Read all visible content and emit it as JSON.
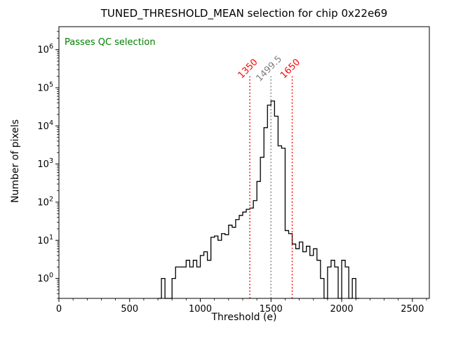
{
  "chart_data": {
    "type": "histogram-step",
    "title": "TUNED_THRESHOLD_MEAN selection for chip 0x22e69",
    "xlabel": "Threshold (e)",
    "ylabel": "Number of pixels",
    "yscale": "log",
    "grid": false,
    "xlim": [
      0,
      2620
    ],
    "ylim": [
      0.3,
      4000000
    ],
    "xticks": [
      0,
      500,
      1000,
      1500,
      2000,
      2500
    ],
    "x_minor_step": 100,
    "ytick_exponents": [
      0,
      1,
      2,
      3,
      4,
      5,
      6
    ],
    "line_color": "#000000",
    "bins": {
      "start": 700,
      "width": 25
    },
    "counts": [
      0,
      1,
      0,
      0,
      1,
      2,
      2,
      2,
      3,
      2,
      3,
      2,
      4,
      5,
      3,
      12,
      13,
      10,
      15,
      14,
      25,
      22,
      35,
      45,
      55,
      65,
      70,
      110,
      350,
      1500,
      9000,
      35000,
      45000,
      18000,
      3000,
      2600,
      18,
      15,
      8,
      6,
      9,
      5,
      7,
      4,
      6,
      3,
      1,
      0,
      2,
      3,
      2,
      0,
      3,
      2,
      0,
      1,
      0
    ],
    "vline_top": 200000,
    "vlines": [
      {
        "x": 1350,
        "label": "1350",
        "color": "#ff0000"
      },
      {
        "x": 1499.5,
        "label": "1499.5",
        "color": "#808080"
      },
      {
        "x": 1650,
        "label": "1650",
        "color": "#ff0000"
      }
    ],
    "annotation": {
      "text": "Passes QC selection",
      "color": "#008000",
      "x": 40,
      "y": 1300000
    }
  }
}
